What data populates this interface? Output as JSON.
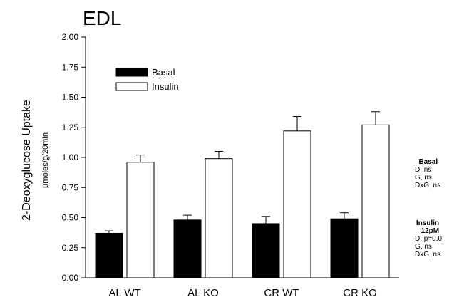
{
  "chart_data": {
    "type": "bar",
    "title": "EDL",
    "ylabel": "2-Deoxyglucose Uptake",
    "ylabel_unit": "µmoles/g/20min",
    "xlabel": "",
    "ylim": [
      0,
      2.0
    ],
    "yticks": [
      "0.00",
      "0.25",
      "0.50",
      "0.75",
      "1.00",
      "1.25",
      "1.50",
      "1.75",
      "2.00"
    ],
    "categories": [
      "AL WT",
      "AL KO",
      "CR WT",
      "CR KO"
    ],
    "series": [
      {
        "name": "Basal",
        "color": "#000000",
        "values": [
          0.37,
          0.48,
          0.45,
          0.49
        ],
        "errors": [
          0.02,
          0.04,
          0.06,
          0.05
        ]
      },
      {
        "name": "Insulin",
        "color": "#ffffff",
        "values": [
          0.96,
          0.99,
          1.22,
          1.27
        ],
        "errors": [
          0.06,
          0.06,
          0.12,
          0.11
        ]
      }
    ],
    "legend_position": "top-left",
    "grid": false
  },
  "stats_panel": {
    "basal": {
      "heading": "Basal",
      "lines": [
        "D, ns",
        "G, ns",
        "DxG, ns"
      ]
    },
    "insulin": {
      "heading": "Insulin\n12pM",
      "lines": [
        "D, p=0.0",
        "G, ns",
        "DxG, ns"
      ]
    }
  }
}
